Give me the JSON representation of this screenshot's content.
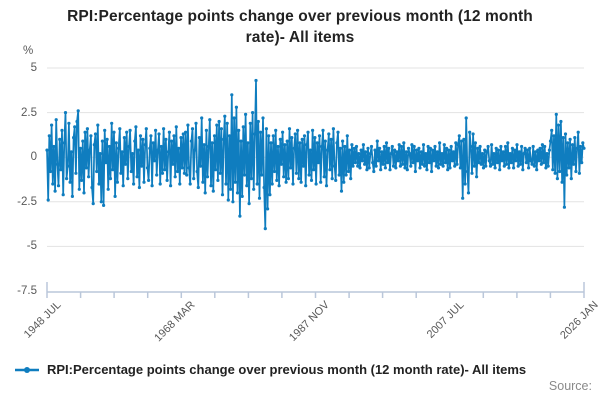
{
  "title": "RPI:Percentage points change over previous month (12 month rate)- All items",
  "y_axis": {
    "unit": "%",
    "ticks": [
      5,
      2.5,
      0,
      -2.5,
      -5,
      -7.5
    ]
  },
  "x_axis": {
    "labels": [
      "1948 JUL",
      "1968 MAR",
      "1987 NOV",
      "2007 JUL",
      "2026 JAN"
    ],
    "minor_tick_count": 17
  },
  "legend": {
    "label": "RPI:Percentage points change over previous month (12 month rate)- All items"
  },
  "source_label": "Source:",
  "colors": {
    "series": "#0f7dbf",
    "grid": "#e3e3e3",
    "axis": "#bac7da",
    "title_text": "#222222",
    "tick_text": "#595959",
    "source_text": "#8a8a8a"
  },
  "chart_data": {
    "type": "line",
    "title": "RPI:Percentage points change over previous month (12 month rate)- All items",
    "xlabel": "",
    "ylabel": "%",
    "ylim": [
      -7.5,
      5
    ],
    "y_ticks": [
      5,
      2.5,
      0,
      -2.5,
      -5,
      -7.5
    ],
    "x_tick_labels": [
      "1948 JUL",
      "1968 MAR",
      "1987 NOV",
      "2007 JUL",
      "2026 JAN"
    ],
    "grid": "horizontal",
    "legend_position": "bottom-left",
    "marker": "dot",
    "series": [
      {
        "name": "RPI:Percentage points change over previous month (12 month rate)- All items",
        "start": "1948-07",
        "end": "2026-01",
        "interval_months": 2,
        "values": [
          0.4,
          -2.4,
          1.2,
          -0.8,
          1.8,
          -1.5,
          0.6,
          -1.9,
          2.1,
          -0.4,
          -1.6,
          1.0,
          -0.7,
          1.5,
          -2.1,
          0.8,
          2.5,
          -1.2,
          -0.5,
          1.9,
          -1.4,
          0.3,
          -2.2,
          1.1,
          1.7,
          -0.9,
          2.0,
          2.6,
          -1.8,
          0.5,
          -1.3,
          0.9,
          -2.0,
          1.4,
          -0.6,
          1.6,
          -1.1,
          0.4,
          1.2,
          -1.7,
          -2.6,
          0.7,
          1.3,
          -0.8,
          1.8,
          -1.5,
          0.2,
          -2.5,
          0.9,
          -2.7,
          1.5,
          -0.3,
          1.0,
          -1.8,
          0.6,
          -1.2,
          1.9,
          -0.7,
          1.4,
          -2.2,
          0.8,
          -1.4,
          0.5,
          1.6,
          -0.9,
          0.3,
          -1.6,
          1.1,
          -0.4,
          1.4,
          -1.2,
          0.6,
          1.5,
          -0.8,
          0.2,
          -1.5,
          0.9,
          1.7,
          -1.1,
          0.4,
          -1.7,
          1.2,
          -0.5,
          1.0,
          -1.4,
          0.7,
          1.6,
          -0.6,
          -1.3,
          0.5,
          1.2,
          -1.6,
          0.8,
          -0.2,
          1.5,
          -1.0,
          0.4,
          1.3,
          -1.5,
          0.6,
          -0.9,
          1.6,
          -0.7,
          1.0,
          -1.3,
          0.3,
          1.4,
          -1.6,
          0.9,
          -0.4,
          1.2,
          -1.1,
          1.7,
          -0.8,
          0.5,
          -1.5,
          1.1,
          -0.6,
          1.3,
          -0.9,
          1.4,
          -1.0,
          1.8,
          -0.6,
          -1.5,
          0.9,
          1.6,
          -1.2,
          0.4,
          1.9,
          -0.8,
          -1.7,
          1.1,
          -0.5,
          2.2,
          -1.4,
          0.7,
          -2.0,
          1.5,
          -1.1,
          0.6,
          2.1,
          -1.6,
          0.8,
          -1.9,
          1.2,
          -0.7,
          1.8,
          -1.3,
          2.0,
          -0.9,
          1.6,
          -2.1,
          1.0,
          2.3,
          -1.5,
          1.9,
          -2.4,
          1.2,
          -1.8,
          3.5,
          -2.5,
          2.2,
          -1.4,
          2.8,
          -2.0,
          1.5,
          -3.3,
          0.9,
          -2.2,
          1.7,
          -1.0,
          2.4,
          -1.6,
          0.8,
          -2.6,
          1.9,
          -1.2,
          2.5,
          -1.8,
          1.3,
          4.3,
          -1.5,
          2.0,
          -2.3,
          1.4,
          -1.0,
          2.2,
          -1.7,
          -4.0,
          1.6,
          -2.9,
          1.2,
          -2.1,
          0.8,
          -1.5,
          1.2,
          -0.8,
          1.5,
          -1.3,
          0.6,
          -1.6,
          1.0,
          -0.4,
          1.4,
          -1.1,
          0.7,
          -1.4,
          0.9,
          -1.2,
          1.6,
          -0.6,
          1.1,
          -1.5,
          0.5,
          1.3,
          -0.9,
          1.5,
          -1.2,
          0.8,
          -1.4,
          1.0,
          -0.5,
          1.2,
          -1.6,
          0.7,
          1.4,
          -1.0,
          0.4,
          -1.3,
          1.5,
          -0.7,
          1.1,
          -1.5,
          0.8,
          -0.3,
          1.2,
          -1.4,
          0.6,
          1.5,
          -1.1,
          0.9,
          -1.6,
          0.4,
          1.3,
          -0.7,
          1.0,
          -1.2,
          1.6,
          -0.5,
          -1.3,
          0.8,
          1.4,
          -1.0,
          0.5,
          -1.9,
          0.9,
          -1.4,
          0.6,
          -1.0,
          1.2,
          -0.8,
          0.4,
          -1.2,
          0.7,
          -0.5,
          0.5,
          -0.3,
          0.6,
          -0.5,
          0.2,
          -0.6,
          0.4,
          -0.2,
          0.7,
          -0.4,
          0.3,
          -0.7,
          0.5,
          -0.6,
          0.2,
          0.6,
          -0.3,
          -0.8,
          0.4,
          -0.5,
          0.9,
          -0.2,
          0.5,
          -0.7,
          0.3,
          -0.4,
          0.6,
          -0.6,
          0.8,
          -0.3,
          0.5,
          -0.7,
          0.2,
          0.6,
          -0.5,
          0.4,
          -0.6,
          0.3,
          -0.2,
          0.7,
          -0.5,
          0.6,
          -0.4,
          0.8,
          -0.6,
          0.3,
          -0.7,
          0.5,
          0.2,
          -0.5,
          0.7,
          -0.3,
          0.6,
          -0.8,
          0.4,
          -0.2,
          0.5,
          -0.6,
          0.3,
          -0.4,
          0.7,
          -0.5,
          0.2,
          -0.7,
          0.6,
          -0.3,
          0.5,
          -0.8,
          0.4,
          -0.2,
          0.6,
          -0.5,
          0.3,
          -0.6,
          0.8,
          -0.4,
          0.2,
          -0.5,
          0.7,
          -0.3,
          0.5,
          -0.7,
          0.4,
          -0.6,
          0.6,
          -0.2,
          0.3,
          -0.5,
          0.8,
          -0.4,
          0.7,
          1.2,
          -0.6,
          0.9,
          -2.3,
          1.0,
          -1.5,
          2.2,
          -0.8,
          -2.0,
          1.4,
          0.6,
          -0.9,
          1.3,
          -0.5,
          0.8,
          -1.1,
          0.5,
          -0.3,
          0.6,
          -0.4,
          0.2,
          -0.6,
          0.4,
          -0.5,
          0.3,
          0.6,
          -0.2,
          -0.5,
          0.7,
          -0.4,
          0.2,
          -0.6,
          0.5,
          -0.3,
          0.4,
          -0.7,
          0.6,
          -0.2,
          0.3,
          -0.5,
          0.6,
          -0.4,
          0.8,
          -0.6,
          0.2,
          -0.3,
          0.5,
          -0.6,
          0.4,
          -0.2,
          0.7,
          -0.5,
          0.3,
          -0.4,
          0.6,
          -0.7,
          0.2,
          0.5,
          -0.3,
          0.4,
          -0.6,
          0.5,
          -0.2,
          -0.4,
          0.6,
          -0.5,
          0.3,
          -0.7,
          0.4,
          -0.2,
          0.5,
          -0.4,
          0.7,
          -0.3,
          0.6,
          -0.6,
          0.2,
          -0.5,
          0.4,
          0.9,
          1.5,
          -0.7,
          1.2,
          -0.9,
          2.4,
          -1.2,
          1.8,
          -0.8,
          2.0,
          -1.4,
          1.1,
          -2.8,
          1.3,
          -1.0,
          0.8,
          -0.6,
          1.0,
          -1.2,
          0.7,
          -0.4,
          1.1,
          -0.8,
          0.5,
          1.4,
          -0.9,
          0.6,
          -0.3,
          0.8,
          0.5
        ]
      }
    ]
  }
}
